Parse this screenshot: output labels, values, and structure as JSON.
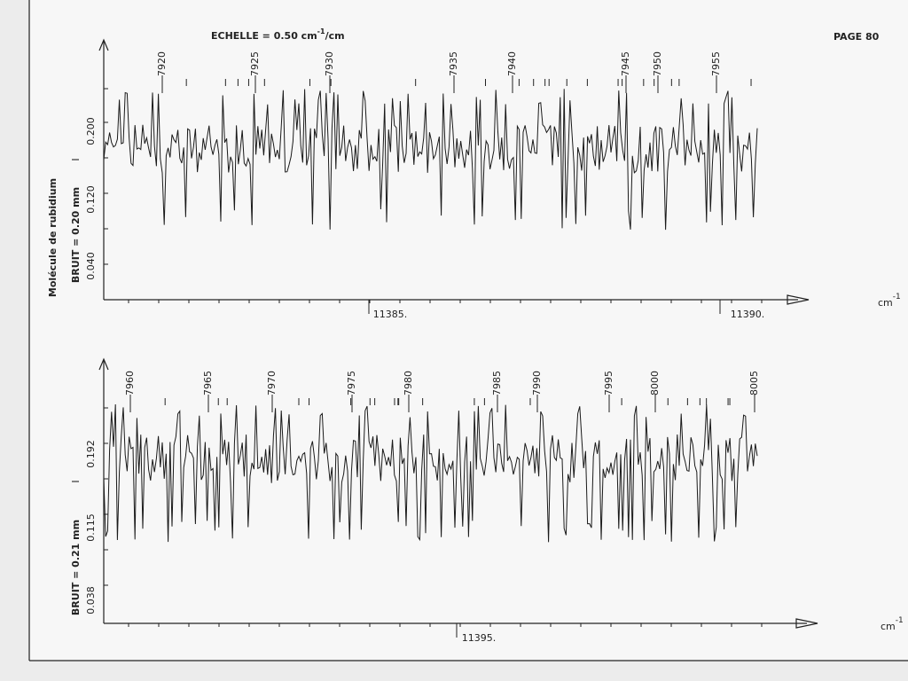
{
  "header": {
    "scale": {
      "text": "ECHELLE = 0.50 cm",
      "exponent": "-1",
      "suffix": "/cm"
    },
    "page": "PAGE 80"
  },
  "side_label": "Molécule de rubidium",
  "panels": [
    {
      "noise": "BRUIT = 0.20 mm",
      "intensity_symbol": "I",
      "y_labels": [
        "0.200",
        "0.120",
        "0.040"
      ],
      "line_numbers": [
        "7920",
        "7925",
        "7930",
        "7935",
        "7940",
        "7945",
        "7950",
        "7955"
      ],
      "x_labels": [
        "11385.",
        "11390."
      ],
      "unit": {
        "base": "cm",
        "exponent": "-1"
      }
    },
    {
      "noise": "BRUIT = 0.21 mm",
      "intensity_symbol": "I",
      "y_labels": [
        "0.192",
        "0.115",
        "0.038"
      ],
      "line_numbers": [
        "7960",
        "7965",
        "7970",
        "7975",
        "7980",
        "7985",
        "7990",
        "7995",
        "8000",
        "8005"
      ],
      "x_labels": [
        "11395."
      ],
      "unit": {
        "base": "cm",
        "exponent": "-1"
      }
    }
  ]
}
